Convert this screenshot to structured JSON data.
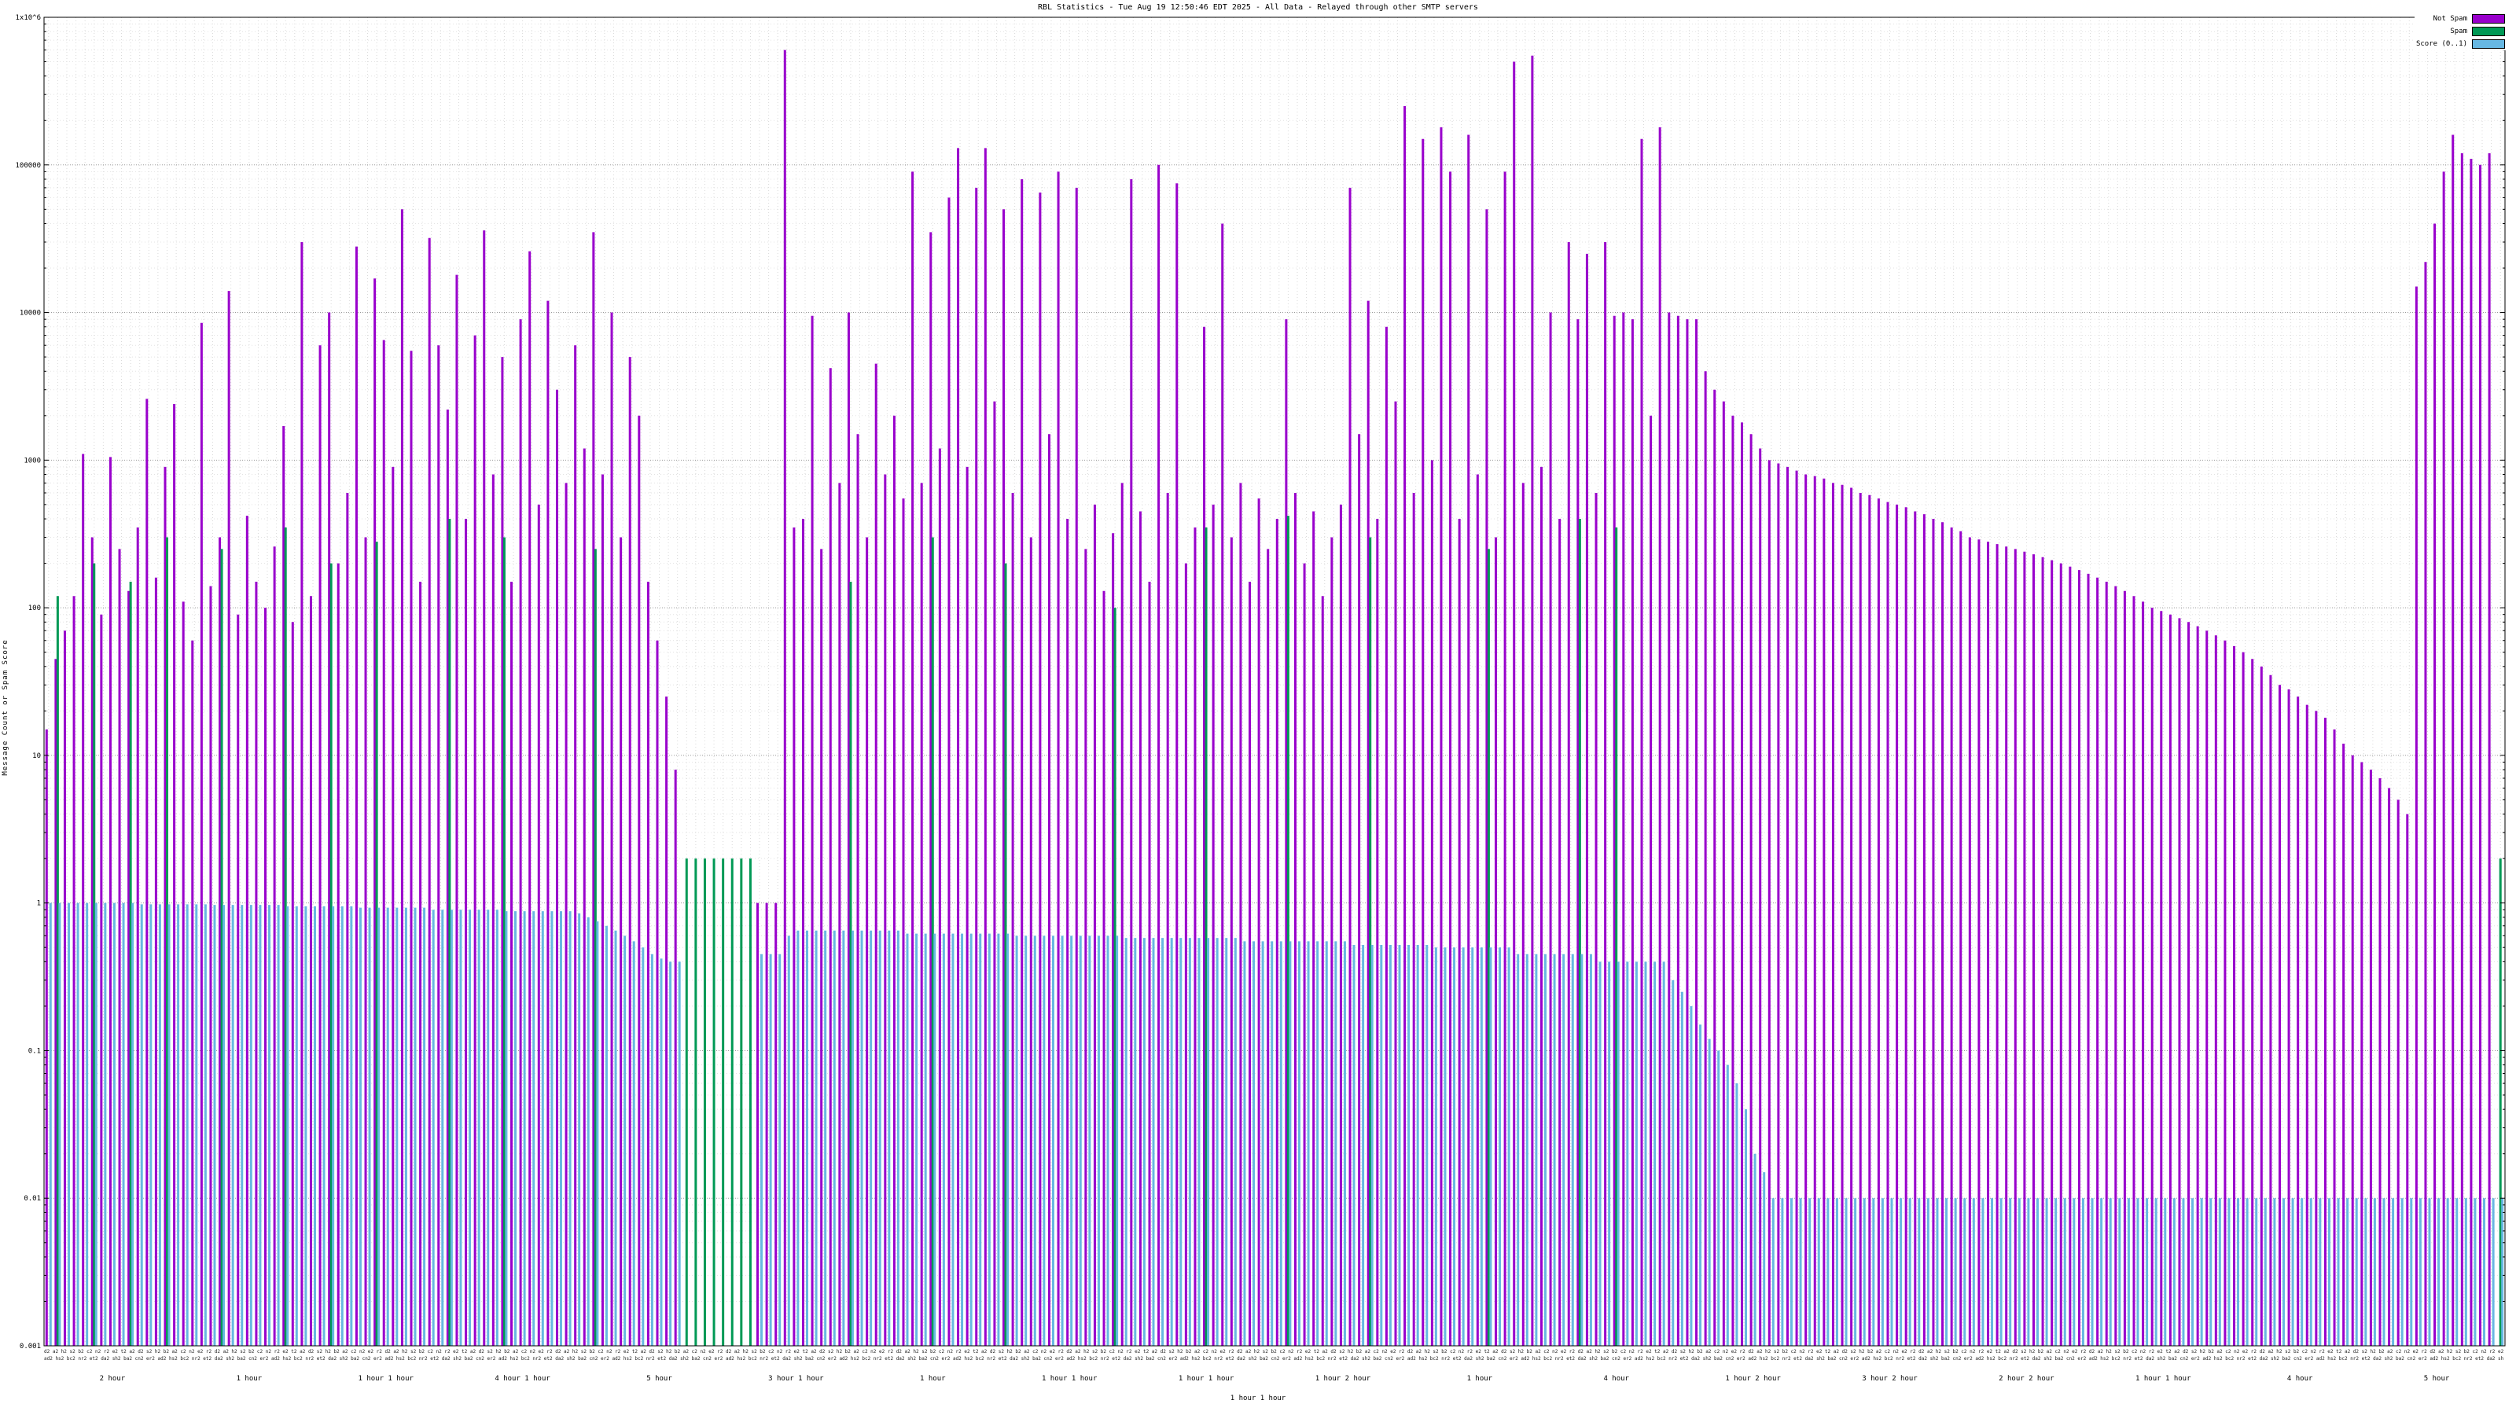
{
  "title": "RBL Statistics - Tue Aug 19 12:50:46 EDT 2025 - All Data - Relayed through other SMTP servers",
  "y_axis_title": "Message Count or Spam Score",
  "x_axis_footer": "1 hour 1 hour",
  "legend": [
    {
      "label": "Not Spam",
      "color": "#9900cc"
    },
    {
      "label": "Spam",
      "color": "#009955"
    },
    {
      "label": "Score (0..1)",
      "color": "#67b7e2"
    }
  ],
  "chart_data": {
    "type": "bar",
    "title": "RBL Statistics - Tue Aug 19 12:50:46 EDT 2025 - All Data - Relayed through other SMTP servers",
    "xlabel": "",
    "ylabel": "Message Count or Spam Score",
    "y_scale": "log",
    "ylim": [
      0.001,
      1000000
    ],
    "grid": true,
    "legend_position": "top-right",
    "colors": {
      "not_spam": "#9900cc",
      "spam": "#009955",
      "score": "#67b7e2"
    },
    "y_ticks": [
      {
        "label": "1x10^6",
        "value": 1000000
      },
      {
        "label": "100000",
        "value": 100000
      },
      {
        "label": "10000",
        "value": 10000
      },
      {
        "label": "1000",
        "value": 1000
      },
      {
        "label": "100",
        "value": 100
      },
      {
        "label": "10",
        "value": 10
      },
      {
        "label": "1",
        "value": 1
      },
      {
        "label": "0.1",
        "value": 0.1
      },
      {
        "label": "0.01",
        "value": 0.01
      },
      {
        "label": "0.001",
        "value": 0.001
      }
    ],
    "x_group_labels": [
      "2 hour",
      "1 hour",
      "1 hour 1 hour",
      "4 hour 1 hour",
      "5 hour",
      "3 hour 1 hour",
      "1 hour",
      "1 hour 1 hour",
      "1 hour 1 hour",
      "1 hour 2 hour",
      "1 hour",
      "4 hour",
      "1 hour 2 hour",
      "3 hour 2 hour",
      "2 hour 2 hour",
      "1 hour 1 hour",
      "4 hour",
      "5 hour"
    ],
    "x_axis_micro_row1": "d2 a2 h2 s2 b2 c2 n2 r2 e2 t2 a2 d2 s2 h2 b2 a2 c2 n2 e2 r2 ",
    "x_axis_micro_row2": "ad2 hs2 bc2 nr2 et2 da2 sh2 ba2 cn2 er2 ",
    "series": [
      {
        "name": "Not Spam",
        "values": [
          15,
          45,
          70,
          120,
          1100,
          300,
          90,
          1050,
          250,
          130,
          350,
          2600,
          160,
          900,
          2400,
          110,
          60,
          8500,
          140,
          300,
          14000,
          90,
          420,
          150,
          100,
          260,
          1700,
          80,
          30000,
          120,
          6000,
          10000,
          200,
          600,
          28000,
          300,
          17000,
          6500,
          900,
          50000,
          5500,
          150,
          32000,
          6000,
          2200,
          18000,
          400,
          7000,
          36000,
          800,
          5000,
          150,
          9000,
          26000,
          500,
          12000,
          3000,
          700,
          6000,
          1200,
          35000,
          800,
          10000,
          300,
          5000,
          2000,
          150,
          60,
          25,
          8,
          0,
          0,
          0,
          0,
          0,
          0,
          0,
          0,
          1,
          1,
          1,
          600000,
          350,
          400,
          9500,
          250,
          4200,
          700,
          10000,
          1500,
          300,
          4500,
          800,
          2000,
          550,
          90000,
          700,
          35000,
          1200,
          60000,
          130000,
          900,
          70000,
          130000,
          2500,
          50000,
          600,
          80000,
          300,
          65000,
          1500,
          90000,
          400,
          70000,
          250,
          500,
          130,
          320,
          700,
          80000,
          450,
          150,
          100000,
          600,
          75000,
          200,
          350,
          8000,
          500,
          40000,
          300,
          700,
          150,
          550,
          250,
          400,
          9000,
          600,
          200,
          450,
          120,
          300,
          500,
          70000,
          1500,
          12000,
          400,
          8000,
          2500,
          250000,
          600,
          150000,
          1000,
          180000,
          90000,
          400,
          160000,
          800,
          50000,
          300,
          90000,
          500000,
          700,
          550000,
          900,
          10000,
          400,
          30000,
          9000,
          25000,
          600,
          30000,
          9500,
          10000,
          9000,
          150000,
          2000,
          180000,
          10000,
          9500,
          9000,
          9000,
          4000,
          3000,
          2500,
          2000,
          1800,
          1500,
          1200,
          1000,
          950,
          900,
          850,
          800,
          780,
          750,
          700,
          680,
          650,
          600,
          580,
          550,
          520,
          500,
          480,
          450,
          430,
          400,
          380,
          350,
          330,
          300,
          290,
          280,
          270,
          260,
          250,
          240,
          230,
          220,
          210,
          200,
          190,
          180,
          170,
          160,
          150,
          140,
          130,
          120,
          110,
          100,
          95,
          90,
          85,
          80,
          75,
          70,
          65,
          60,
          55,
          50,
          45,
          40,
          35,
          30,
          28,
          25,
          22,
          20,
          18,
          15,
          12,
          10,
          9,
          8,
          7,
          6,
          5,
          4,
          15000,
          22000,
          40000,
          90000,
          160000,
          120000,
          110000,
          100000,
          120000,
          0
        ]
      },
      {
        "name": "Spam",
        "values": [
          0,
          120,
          0,
          0,
          0,
          200,
          0,
          0,
          0,
          150,
          0,
          0,
          0,
          300,
          0,
          0,
          0,
          0,
          0,
          250,
          0,
          0,
          0,
          0,
          0,
          0,
          350,
          0,
          0,
          0,
          0,
          200,
          0,
          0,
          0,
          0,
          280,
          0,
          0,
          0,
          0,
          0,
          0,
          0,
          400,
          0,
          0,
          0,
          0,
          0,
          300,
          0,
          0,
          0,
          0,
          0,
          0,
          0,
          0,
          0,
          250,
          0,
          0,
          0,
          0,
          0,
          0,
          0,
          0,
          0,
          2,
          2,
          2,
          2,
          2,
          2,
          2,
          2,
          0,
          0,
          0,
          0,
          0,
          0,
          0,
          0,
          0,
          0,
          150,
          0,
          0,
          0,
          0,
          0,
          0,
          0,
          0,
          300,
          0,
          0,
          0,
          0,
          0,
          0,
          0,
          200,
          0,
          0,
          0,
          0,
          0,
          0,
          0,
          0,
          0,
          0,
          0,
          100,
          0,
          0,
          0,
          0,
          0,
          0,
          0,
          0,
          0,
          350,
          0,
          0,
          0,
          0,
          0,
          0,
          0,
          0,
          420,
          0,
          0,
          0,
          0,
          0,
          0,
          0,
          0,
          300,
          0,
          0,
          0,
          0,
          0,
          0,
          0,
          0,
          0,
          0,
          0,
          0,
          250,
          0,
          0,
          0,
          0,
          0,
          0,
          0,
          0,
          0,
          400,
          0,
          0,
          0,
          350,
          0,
          0,
          0,
          0,
          0,
          0,
          0,
          0,
          0,
          0,
          0,
          0,
          0,
          0,
          0,
          0,
          0,
          0,
          0,
          0,
          0,
          0,
          0,
          0,
          0,
          0,
          0,
          0,
          0,
          0,
          0,
          0,
          0,
          0,
          0,
          0,
          0,
          0,
          0,
          0,
          0,
          0,
          0,
          0,
          0,
          0,
          0,
          0,
          0,
          0,
          0,
          0,
          0,
          0,
          0,
          0,
          0,
          0,
          0,
          0,
          0,
          0,
          0,
          0,
          0,
          0,
          0,
          0,
          0,
          0,
          0,
          0,
          0,
          0,
          0,
          0,
          0,
          0,
          0,
          0,
          0,
          0,
          0,
          0,
          0,
          0,
          0,
          0,
          0,
          0,
          0,
          0,
          0,
          0,
          0,
          0,
          2
        ]
      },
      {
        "name": "Score (0..1)",
        "values": [
          1,
          1,
          1,
          1,
          1,
          1,
          1,
          1,
          1,
          1,
          0.98,
          0.98,
          0.98,
          0.98,
          0.98,
          0.98,
          0.98,
          0.98,
          0.97,
          0.97,
          0.97,
          0.97,
          0.97,
          0.97,
          0.97,
          0.97,
          0.95,
          0.95,
          0.95,
          0.95,
          0.95,
          0.95,
          0.95,
          0.95,
          0.93,
          0.93,
          0.93,
          0.93,
          0.93,
          0.93,
          0.93,
          0.93,
          0.9,
          0.9,
          0.9,
          0.9,
          0.9,
          0.9,
          0.9,
          0.9,
          0.88,
          0.88,
          0.88,
          0.88,
          0.88,
          0.88,
          0.88,
          0.88,
          0.85,
          0.8,
          0.75,
          0.7,
          0.65,
          0.6,
          0.55,
          0.5,
          0.45,
          0.42,
          0.4,
          0.4,
          0,
          0,
          0,
          0,
          0,
          0,
          0,
          0,
          0.45,
          0.45,
          0.45,
          0.6,
          0.65,
          0.65,
          0.65,
          0.65,
          0.65,
          0.65,
          0.65,
          0.65,
          0.65,
          0.65,
          0.65,
          0.65,
          0.62,
          0.62,
          0.62,
          0.62,
          0.62,
          0.62,
          0.62,
          0.62,
          0.62,
          0.62,
          0.62,
          0.62,
          0.6,
          0.6,
          0.6,
          0.6,
          0.6,
          0.6,
          0.6,
          0.6,
          0.6,
          0.6,
          0.6,
          0.6,
          0.58,
          0.58,
          0.58,
          0.58,
          0.58,
          0.58,
          0.58,
          0.58,
          0.58,
          0.58,
          0.58,
          0.58,
          0.58,
          0.55,
          0.55,
          0.55,
          0.55,
          0.55,
          0.55,
          0.55,
          0.55,
          0.55,
          0.55,
          0.55,
          0.55,
          0.52,
          0.52,
          0.52,
          0.52,
          0.52,
          0.52,
          0.52,
          0.52,
          0.52,
          0.5,
          0.5,
          0.5,
          0.5,
          0.5,
          0.5,
          0.5,
          0.5,
          0.5,
          0.45,
          0.45,
          0.45,
          0.45,
          0.45,
          0.45,
          0.45,
          0.45,
          0.45,
          0.4,
          0.4,
          0.4,
          0.4,
          0.4,
          0.4,
          0.4,
          0.4,
          0.3,
          0.25,
          0.2,
          0.15,
          0.12,
          0.1,
          0.08,
          0.06,
          0.04,
          0.02,
          0.015,
          0.01,
          0.01,
          0.01,
          0.01,
          0.01,
          0.01,
          0.01,
          0.01,
          0.01,
          0.01,
          0.01,
          0.01,
          0.01,
          0.01,
          0.01,
          0.01,
          0.01,
          0.01,
          0.01,
          0.01,
          0.01,
          0.01,
          0.01,
          0.01,
          0.01,
          0.01,
          0.01,
          0.01,
          0.01,
          0.01,
          0.01,
          0.01,
          0.01,
          0.01,
          0.01,
          0.01,
          0.01,
          0.01,
          0.01,
          0.01,
          0.01,
          0.01,
          0.01,
          0.01,
          0.01,
          0.01,
          0.01,
          0.01,
          0.01,
          0.01,
          0.01,
          0.01,
          0.01,
          0.01,
          0.01,
          0.01,
          0.01,
          0.01,
          0.01,
          0.01,
          0.01,
          0.01,
          0.01,
          0.01,
          0.01,
          0.01,
          0.01,
          0.01,
          0.01,
          0.01,
          0.01,
          0.01,
          0.01,
          0.01,
          0.01,
          0.01,
          0.01,
          0.01,
          0.01,
          0.01,
          0.01
        ]
      }
    ]
  }
}
